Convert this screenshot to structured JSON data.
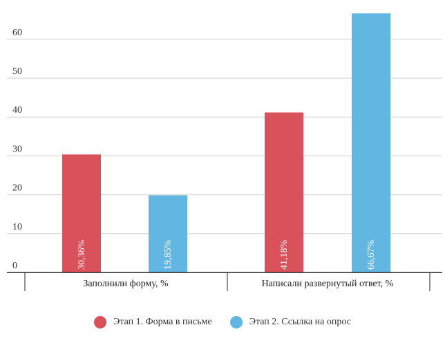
{
  "chart_data": {
    "type": "bar",
    "categories": [
      "Заполнили форму, %",
      "Написали развернутый ответ, %"
    ],
    "series": [
      {
        "name": "Этап 1. Форма в письме",
        "color": "#d9525b",
        "values": [
          30.36,
          41.18
        ],
        "labels": [
          "30,36%",
          "41,18%"
        ]
      },
      {
        "name": "Этап 2. Ссылка на опрос",
        "color": "#62b6e2",
        "values": [
          19.85,
          66.67
        ],
        "labels": [
          "19,85%",
          "66,67%"
        ]
      }
    ],
    "yticks": [
      0,
      10,
      20,
      30,
      40,
      50,
      60
    ],
    "ylim": [
      0,
      70
    ],
    "grid": true,
    "legend_position": "bottom"
  }
}
